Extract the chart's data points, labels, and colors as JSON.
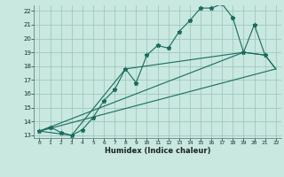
{
  "title": "",
  "xlabel": "Humidex (Indice chaleur)",
  "background_color": "#c8e8e0",
  "grid_color": "#a0c8c0",
  "line_color": "#1a6b5e",
  "xlim": [
    -0.5,
    22.5
  ],
  "ylim": [
    12.8,
    22.4
  ],
  "xticks": [
    0,
    1,
    2,
    3,
    4,
    5,
    6,
    7,
    8,
    9,
    10,
    11,
    12,
    13,
    14,
    15,
    16,
    17,
    18,
    19,
    20,
    21,
    22
  ],
  "yticks": [
    13,
    14,
    15,
    16,
    17,
    18,
    19,
    20,
    21,
    22
  ],
  "series1_x": [
    0,
    1,
    2,
    3,
    4,
    5,
    6,
    7,
    8,
    9,
    10,
    11,
    12,
    13,
    14,
    15,
    16,
    17,
    18,
    19,
    20,
    21
  ],
  "series1_y": [
    13.3,
    13.6,
    13.2,
    13.0,
    13.4,
    14.3,
    15.5,
    16.3,
    17.8,
    16.8,
    18.8,
    19.5,
    19.3,
    20.5,
    21.3,
    22.2,
    22.2,
    22.5,
    21.5,
    19.0,
    21.0,
    18.8
  ],
  "series2_x": [
    0,
    22
  ],
  "series2_y": [
    13.3,
    17.8
  ],
  "series3_x": [
    0,
    3,
    8,
    19,
    21,
    22
  ],
  "series3_y": [
    13.3,
    13.0,
    17.8,
    19.0,
    18.8,
    17.8
  ],
  "series4_x": [
    0,
    19,
    21,
    22
  ],
  "series4_y": [
    13.3,
    19.0,
    18.8,
    17.8
  ]
}
